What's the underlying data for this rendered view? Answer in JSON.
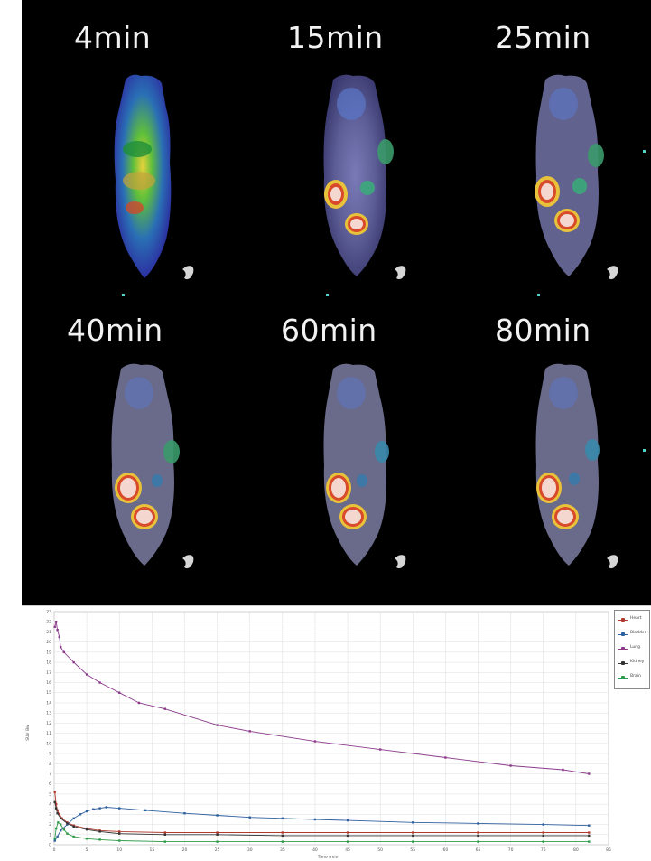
{
  "pet_panel": {
    "frames": [
      {
        "label": "4min"
      },
      {
        "label": "15min"
      },
      {
        "label": "25min"
      },
      {
        "label": "40min"
      },
      {
        "label": "60min"
      },
      {
        "label": "80min"
      }
    ]
  },
  "chart_data": {
    "type": "line",
    "title": "",
    "xlabel": "Time (min)",
    "ylabel": "SUV Bw",
    "xlim": [
      0,
      85
    ],
    "ylim": [
      0,
      23
    ],
    "x_ticks": [
      0,
      5,
      10,
      15,
      20,
      25,
      30,
      35,
      40,
      45,
      50,
      55,
      60,
      65,
      70,
      75,
      80,
      85
    ],
    "y_ticks": [
      0,
      1,
      2,
      3,
      4,
      5,
      6,
      7,
      8,
      9,
      10,
      11,
      12,
      13,
      14,
      15,
      16,
      17,
      18,
      19,
      20,
      21,
      22,
      23
    ],
    "series": [
      {
        "name": "Heart",
        "color": "#b03a2e",
        "points": [
          [
            0.1,
            5.2
          ],
          [
            0.3,
            4.0
          ],
          [
            0.5,
            3.4
          ],
          [
            0.8,
            3.0
          ],
          [
            1.2,
            2.6
          ],
          [
            2,
            2.2
          ],
          [
            3,
            1.9
          ],
          [
            5,
            1.6
          ],
          [
            7,
            1.4
          ],
          [
            10,
            1.3
          ],
          [
            17,
            1.2
          ],
          [
            25,
            1.2
          ],
          [
            35,
            1.2
          ],
          [
            45,
            1.2
          ],
          [
            55,
            1.2
          ],
          [
            65,
            1.2
          ],
          [
            75,
            1.2
          ],
          [
            82,
            1.2
          ]
        ]
      },
      {
        "name": "Bladder",
        "color": "#2e5f9e",
        "points": [
          [
            0.1,
            0.4
          ],
          [
            0.5,
            0.8
          ],
          [
            1,
            1.4
          ],
          [
            2,
            2.0
          ],
          [
            3,
            2.6
          ],
          [
            4,
            3.0
          ],
          [
            5,
            3.3
          ],
          [
            6,
            3.5
          ],
          [
            7,
            3.6
          ],
          [
            8,
            3.7
          ],
          [
            10,
            3.6
          ],
          [
            14,
            3.4
          ],
          [
            20,
            3.1
          ],
          [
            25,
            2.9
          ],
          [
            30,
            2.7
          ],
          [
            35,
            2.6
          ],
          [
            40,
            2.5
          ],
          [
            45,
            2.4
          ],
          [
            55,
            2.2
          ],
          [
            65,
            2.1
          ],
          [
            75,
            2.0
          ],
          [
            82,
            1.9
          ]
        ]
      },
      {
        "name": "Lung",
        "color": "#8b3a8b",
        "points": [
          [
            0.1,
            21.5
          ],
          [
            0.3,
            22.0
          ],
          [
            0.5,
            21.2
          ],
          [
            0.8,
            20.5
          ],
          [
            1,
            19.5
          ],
          [
            1.5,
            19.0
          ],
          [
            3,
            18.0
          ],
          [
            5,
            16.8
          ],
          [
            7,
            16.0
          ],
          [
            10,
            15.0
          ],
          [
            13,
            14.0
          ],
          [
            17,
            13.4
          ],
          [
            25,
            11.8
          ],
          [
            30,
            11.2
          ],
          [
            40,
            10.2
          ],
          [
            50,
            9.4
          ],
          [
            60,
            8.6
          ],
          [
            70,
            7.8
          ],
          [
            78,
            7.4
          ],
          [
            82,
            7.0
          ]
        ]
      },
      {
        "name": "Kidney",
        "color": "#333333",
        "points": [
          [
            0.1,
            4.2
          ],
          [
            0.3,
            3.6
          ],
          [
            0.5,
            3.1
          ],
          [
            1,
            2.6
          ],
          [
            2,
            2.1
          ],
          [
            3,
            1.8
          ],
          [
            5,
            1.5
          ],
          [
            7,
            1.3
          ],
          [
            10,
            1.1
          ],
          [
            17,
            1.0
          ],
          [
            25,
            1.0
          ],
          [
            35,
            0.9
          ],
          [
            45,
            0.9
          ],
          [
            55,
            0.9
          ],
          [
            65,
            0.9
          ],
          [
            75,
            0.9
          ],
          [
            82,
            0.9
          ]
        ]
      },
      {
        "name": "Brain",
        "color": "#2e9b4a",
        "points": [
          [
            0.1,
            0.6
          ],
          [
            0.3,
            1.6
          ],
          [
            0.6,
            2.2
          ],
          [
            1,
            2.0
          ],
          [
            1.5,
            1.5
          ],
          [
            2,
            1.1
          ],
          [
            3,
            0.8
          ],
          [
            5,
            0.6
          ],
          [
            7,
            0.5
          ],
          [
            10,
            0.4
          ],
          [
            17,
            0.3
          ],
          [
            25,
            0.3
          ],
          [
            35,
            0.3
          ],
          [
            45,
            0.3
          ],
          [
            55,
            0.3
          ],
          [
            65,
            0.3
          ],
          [
            75,
            0.3
          ],
          [
            82,
            0.3
          ]
        ]
      }
    ],
    "legend_position": "top-right",
    "grid": true
  }
}
